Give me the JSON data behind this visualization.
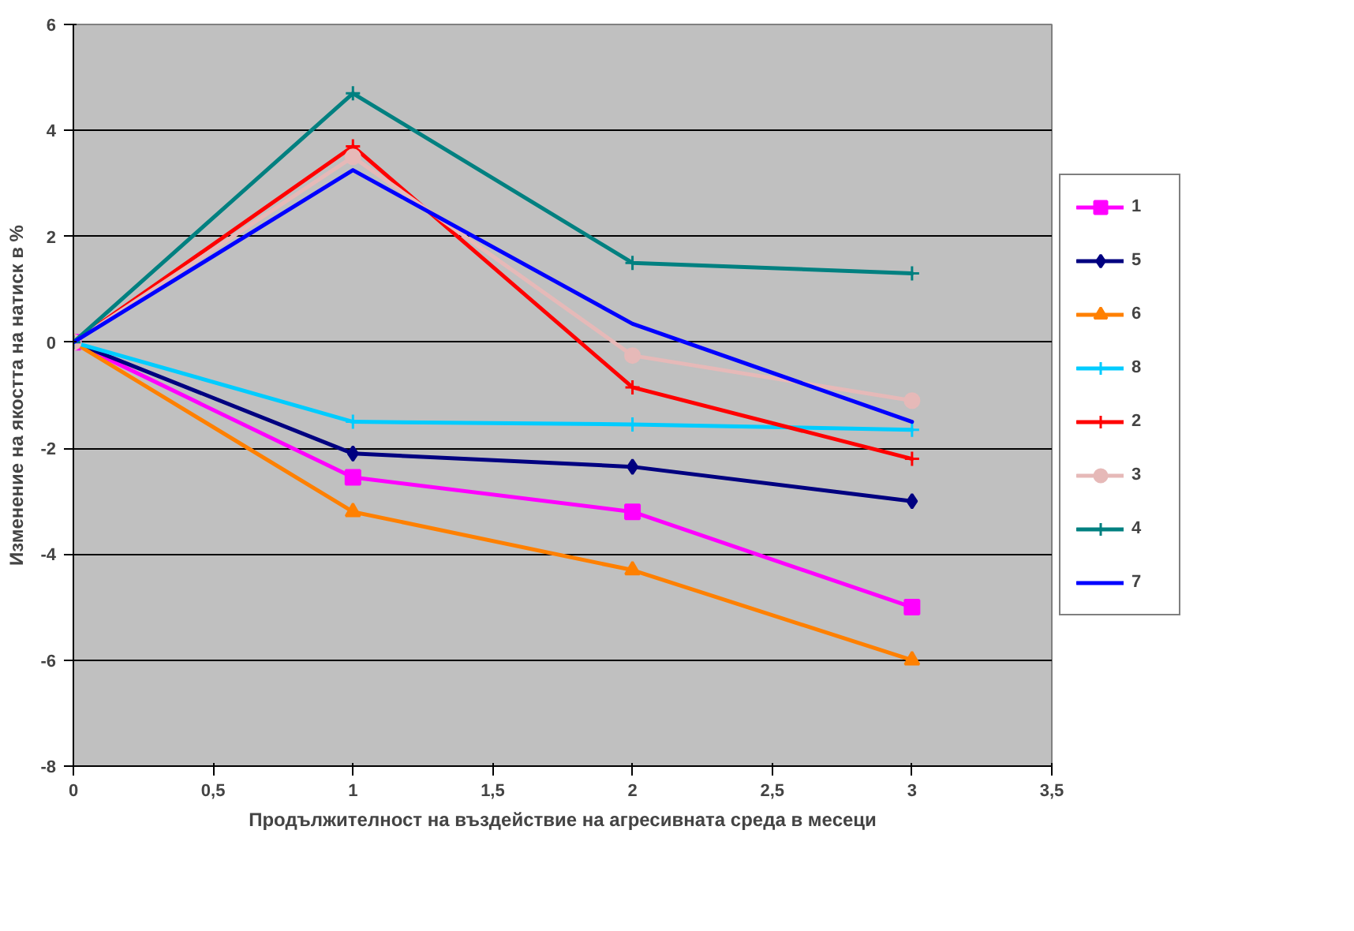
{
  "chart_data": {
    "type": "line",
    "xlabel": "Продължителност на въздействие на агресивната среда в месеци",
    "ylabel": "Изменение на якостта на натиск в %",
    "x": [
      0,
      1,
      2,
      3
    ],
    "series": [
      {
        "name": "1",
        "color": "#ff00ff",
        "marker": "square",
        "values": [
          0,
          -2.55,
          -3.2,
          -5.0
        ]
      },
      {
        "name": "5",
        "color": "#000080",
        "marker": "diamond",
        "values": [
          0,
          -2.1,
          -2.35,
          -3.0
        ]
      },
      {
        "name": "6",
        "color": "#ff8000",
        "marker": "triangle",
        "values": [
          0,
          -3.2,
          -4.3,
          -6.0
        ]
      },
      {
        "name": "8",
        "color": "#00ccff",
        "marker": "cross",
        "values": [
          0,
          -1.5,
          -1.55,
          -1.65
        ]
      },
      {
        "name": "2",
        "color": "#ff0000",
        "marker": "cross",
        "values": [
          0,
          3.7,
          -0.85,
          -2.2
        ]
      },
      {
        "name": "3",
        "color": "#e6b9b8",
        "marker": "circle",
        "values": [
          0,
          3.5,
          -0.25,
          -1.1
        ]
      },
      {
        "name": "4",
        "color": "#008080",
        "marker": "cross",
        "values": [
          0,
          4.7,
          1.5,
          1.3
        ]
      },
      {
        "name": "7",
        "color": "#0000ff",
        "marker": "none",
        "values": [
          0,
          3.25,
          0.35,
          -1.5
        ]
      }
    ],
    "xlim": [
      0,
      3.5
    ],
    "xticks": [
      0,
      {
        "value": 0.5,
        "label": "0,5"
      },
      1,
      {
        "value": 1.5,
        "label": "1,5"
      },
      2,
      {
        "value": 2.5,
        "label": "2,5"
      },
      3,
      {
        "value": 3.5,
        "label": "3,5"
      }
    ],
    "ylim": [
      -8,
      6
    ],
    "yticks": [
      -8,
      -6,
      -4,
      -2,
      0,
      2,
      4,
      6
    ],
    "grid": "y",
    "legend": "right"
  }
}
